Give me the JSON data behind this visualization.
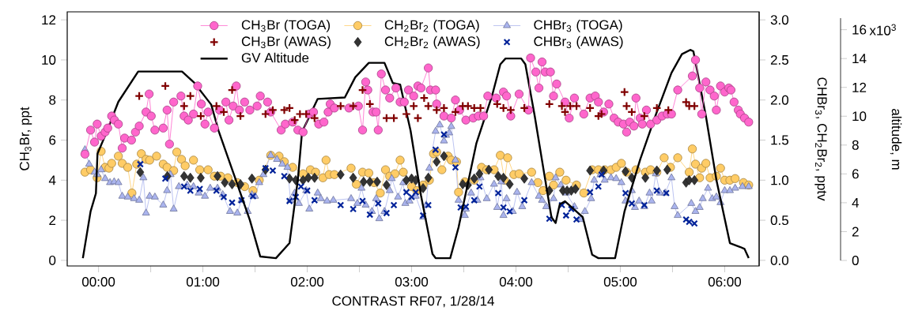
{
  "chart_data": {
    "type": "line",
    "xlabel": "CONTRAST RF07, 1/28/14",
    "ylabel": "CH$_{3}$Br, ppt",
    "y2label": "CHBr$_{3}$, CH$_{2}$Br$_{2}$, pptv",
    "y3label": "altitude, m",
    "xlim": [
      -0.3,
      6.33
    ],
    "ylim": [
      -0.28,
      12.4
    ],
    "y2lim": [
      -0.07,
      3.1
    ],
    "y3lim": [
      0,
      16.8
    ],
    "xticks": [
      {
        "value": 0,
        "label": "00:00"
      },
      {
        "value": 0.5,
        "label": null
      },
      {
        "value": 1,
        "label": "01:00"
      },
      {
        "value": 1.5,
        "label": null
      },
      {
        "value": 2,
        "label": "02:00"
      },
      {
        "value": 2.5,
        "label": null
      },
      {
        "value": 3,
        "label": "03:00"
      },
      {
        "value": 3.5,
        "label": null
      },
      {
        "value": 4,
        "label": "04:00"
      },
      {
        "value": 4.5,
        "label": null
      },
      {
        "value": 5,
        "label": "05:00"
      },
      {
        "value": 5.5,
        "label": null
      },
      {
        "value": 6,
        "label": "06:00"
      }
    ],
    "yticks": [
      0,
      2,
      4,
      6,
      8,
      10,
      12
    ],
    "y2ticks": [
      {
        "value": 0,
        "label": "0.0"
      },
      {
        "value": 0.5,
        "label": "0.5"
      },
      {
        "value": 1,
        "label": "1.0"
      },
      {
        "value": 1.5,
        "label": "1.5"
      },
      {
        "value": 2,
        "label": "2.0"
      },
      {
        "value": 2.5,
        "label": "2.5"
      },
      {
        "value": 3,
        "label": "3.0"
      }
    ],
    "y3ticks": [
      0,
      2,
      4,
      6,
      8,
      10,
      12,
      14,
      16
    ],
    "annotations": [
      "x10$^{3}$"
    ],
    "legend": "top",
    "series": [
      {
        "name": "CH$_{3}$Br (TOGA)",
        "marker": "circle",
        "color": "#ff66cc",
        "x": [
          -0.13,
          -0.076,
          -0.038,
          -0.013,
          0.025,
          0.063,
          0.088,
          0.126,
          0.152,
          0.19,
          0.227,
          0.25,
          0.316,
          0.354,
          0.39,
          0.455,
          0.485,
          0.505,
          0.54,
          0.62,
          0.657,
          0.68,
          0.72,
          0.79,
          0.82,
          0.86,
          0.91,
          0.95,
          0.985,
          1.02,
          1.05,
          1.11,
          1.16,
          1.22,
          1.25,
          1.29,
          1.32,
          1.35,
          1.4,
          1.45,
          1.52,
          1.55,
          1.62,
          1.65,
          1.75,
          1.79,
          1.86,
          1.91,
          1.96,
          2.02,
          2.06,
          2.11,
          2.16,
          2.2,
          2.22,
          2.26,
          2.4,
          2.49,
          2.53,
          2.56,
          2.58,
          2.63,
          2.66,
          2.68,
          2.71,
          2.75,
          2.79,
          2.85,
          2.89,
          2.93,
          2.97,
          3.02,
          3.06,
          3.09,
          3.16,
          3.18,
          3.23,
          3.24,
          3.31,
          3.38,
          3.42,
          3.46,
          3.52,
          3.59,
          3.64,
          3.69,
          3.73,
          3.81,
          3.88,
          3.91,
          3.95,
          4.03,
          4.12,
          4.14,
          4.19,
          4.22,
          4.25,
          4.28,
          4.33,
          4.36,
          4.39,
          4.47,
          4.51,
          4.56,
          4.65,
          4.71,
          4.76,
          4.79,
          4.84,
          4.89,
          4.94,
          4.98,
          5.03,
          5.06,
          5.09,
          5.13,
          5.15,
          5.19,
          5.21,
          5.25,
          5.29,
          5.35,
          5.4,
          5.45,
          5.49,
          5.55,
          5.69,
          5.72,
          5.76,
          5.78,
          5.82,
          5.86,
          5.9,
          5.92,
          5.96,
          6.0,
          6.04,
          6.06,
          6.09,
          6.13,
          6.15,
          6.19,
          6.23
        ],
        "values": [
          5.3,
          6.5,
          5.9,
          6.8,
          6.2,
          6.4,
          6.6,
          7.2,
          7.0,
          6.8,
          5.6,
          6.1,
          6.0,
          6.4,
          6.7,
          7.4,
          8.3,
          7.2,
          6.5,
          6.6,
          7.5,
          5.8,
          7.9,
          8.2,
          7.2,
          7.0,
          7.3,
          8.7,
          7.8,
          6.8,
          7.4,
          6.6,
          7.5,
          7.9,
          7.0,
          7.7,
          8.7,
          7.5,
          7.9,
          7.5,
          7.7,
          8.2,
          7.9,
          7.4,
          6.5,
          6.8,
          6.9,
          6.5,
          6.4,
          7.3,
          7.4,
          6.8,
          6.9,
          7.4,
          7.8,
          7.6,
          7.6,
          7.7,
          6.5,
          8.9,
          8.5,
          7.4,
          7.4,
          6.5,
          9.3,
          8.5,
          8.1,
          8.6,
          7.9,
          7.9,
          8.5,
          8.2,
          8.7,
          8.6,
          9.6,
          8.5,
          8.5,
          7.8,
          7.2,
          7.1,
          8.0,
          7.5,
          7.0,
          7.1,
          7.2,
          7.2,
          8.2,
          8.1,
          8.4,
          8.2,
          7.2,
          8.3,
          7.5,
          10.1,
          9.4,
          8.6,
          9.9,
          9.4,
          9.4,
          8.2,
          8.8,
          7.9,
          7.1,
          8.1,
          7.3,
          8.1,
          8.2,
          7.9,
          7.4,
          7.8,
          7.1,
          6.9,
          6.8,
          6.4,
          6.9,
          6.7,
          8.1,
          7.1,
          6.8,
          7.5,
          6.8,
          7.0,
          7.2,
          7.3,
          7.3,
          8.5,
          9.2,
          10.0,
          8.6,
          7.3,
          8.9,
          8.5,
          8.2,
          7.5,
          8.7,
          8.4,
          8.6,
          8.5,
          7.9,
          7.5,
          7.3,
          7.1,
          6.9
        ]
      },
      {
        "name": "CH$_{2}$Br$_{2}$ (TOGA)",
        "marker": "circle",
        "color": "#ffcc66",
        "axis": "y2",
        "x": [
          -0.13,
          -0.076,
          -0.013,
          0.025,
          0.063,
          0.1,
          0.126,
          0.19,
          0.227,
          0.28,
          0.32,
          0.366,
          0.41,
          0.455,
          0.49,
          0.556,
          0.62,
          0.657,
          0.72,
          0.75,
          0.795,
          0.83,
          0.91,
          0.97,
          1.05,
          1.11,
          1.17,
          1.24,
          1.33,
          1.4,
          1.48,
          1.54,
          1.65,
          1.73,
          1.78,
          1.86,
          1.96,
          2.03,
          2.08,
          2.15,
          2.18,
          2.21,
          2.26,
          2.42,
          2.47,
          2.53,
          2.59,
          2.64,
          2.7,
          2.75,
          2.79,
          2.84,
          2.89,
          2.92,
          3.0,
          3.05,
          3.11,
          3.17,
          3.21,
          3.24,
          3.29,
          3.35,
          3.38,
          3.43,
          3.45,
          3.51,
          3.6,
          3.67,
          3.72,
          3.79,
          3.85,
          3.89,
          3.92,
          3.98,
          4.03,
          4.15,
          4.21,
          4.26,
          4.32,
          4.36,
          4.42,
          4.48,
          4.58,
          4.65,
          4.73,
          4.79,
          4.85,
          4.91,
          4.96,
          5.01,
          5.06,
          5.15,
          5.24,
          5.29,
          5.35,
          5.42,
          5.48,
          5.55,
          5.66,
          5.69,
          5.72,
          5.76,
          5.78,
          5.82,
          5.86,
          5.92,
          5.96,
          6.0,
          6.05,
          6.1,
          6.18,
          6.23
        ],
        "values": [
          1.1,
          1.13,
          1.03,
          1.36,
          1.16,
          1.15,
          1.21,
          1.3,
          1.21,
          1.16,
          0.84,
          1.2,
          1.33,
          1.26,
          1.25,
          1.3,
          1.2,
          1.16,
          1.12,
          1.35,
          1.26,
          1.18,
          1.25,
          1.13,
          1.13,
          1.05,
          1.05,
          1.03,
          0.97,
          0.92,
          0.87,
          1.0,
          1.31,
          1.3,
          1.23,
          1.16,
          1.08,
          1.13,
          1.1,
          1.03,
          1.25,
          1.07,
          1.07,
          1.15,
          0.95,
          1.1,
          1.09,
          0.97,
          0.84,
          1.13,
          1.05,
          1.08,
          1.25,
          1.1,
          0.92,
          0.87,
          0.94,
          1.0,
          1.33,
          1.35,
          1.13,
          1.3,
          1.25,
          1.23,
          0.85,
          0.98,
          1.0,
          1.16,
          1.13,
          1.13,
          1.31,
          1.0,
          1.28,
          1.07,
          1.08,
          1.1,
          0.97,
          0.87,
          1.05,
          0.94,
          1.1,
          1.0,
          0.94,
          0.84,
          1.13,
          1.13,
          1.13,
          1.13,
          1.16,
          1.21,
          1.1,
          1.13,
          1.1,
          1.13,
          1.1,
          1.28,
          1.16,
          1.28,
          1.1,
          1.39,
          1.2,
          1.03,
          1.15,
          1.21,
          1.03,
          1.05,
          1.15,
          1.0,
          1.0,
          1.02,
          0.97,
          0.94
        ]
      },
      {
        "name": "CHBr$_{3}$ (TOGA)",
        "marker": "triangle",
        "color": "#aab4ee",
        "axis": "y2",
        "x": [
          -0.13,
          -0.09,
          -0.038,
          -0.013,
          0.025,
          0.063,
          0.11,
          0.15,
          0.19,
          0.227,
          0.28,
          0.34,
          0.39,
          0.43,
          0.455,
          0.49,
          0.54,
          0.62,
          0.657,
          0.69,
          0.72,
          0.77,
          0.85,
          0.91,
          0.96,
          1.02,
          1.07,
          1.14,
          1.19,
          1.26,
          1.33,
          1.37,
          1.43,
          1.47,
          1.5,
          1.54,
          1.58,
          1.65,
          1.71,
          1.76,
          1.81,
          1.84,
          1.88,
          1.92,
          1.99,
          2.02,
          2.1,
          2.13,
          2.19,
          2.25,
          2.42,
          2.48,
          2.52,
          2.56,
          2.62,
          2.66,
          2.69,
          2.74,
          2.79,
          2.81,
          2.87,
          2.92,
          2.94,
          2.98,
          3.04,
          3.11,
          3.14,
          3.17,
          3.23,
          3.27,
          3.31,
          3.33,
          3.36,
          3.38,
          3.42,
          3.45,
          3.51,
          3.52,
          3.57,
          3.63,
          3.66,
          3.72,
          3.79,
          3.82,
          3.86,
          3.88,
          3.91,
          3.97,
          4.01,
          4.06,
          4.15,
          4.22,
          4.25,
          4.29,
          4.36,
          4.38,
          4.43,
          4.48,
          4.56,
          4.62,
          4.66,
          4.72,
          4.75,
          4.81,
          4.85,
          4.91,
          4.96,
          5.01,
          5.05,
          5.11,
          5.14,
          5.18,
          5.23,
          5.28,
          5.3,
          5.34,
          5.38,
          5.43,
          5.49,
          5.52,
          5.55,
          5.68,
          5.72,
          5.76,
          5.79,
          5.84,
          5.88,
          5.92,
          5.96,
          6.0,
          6.05,
          6.1,
          6.17,
          6.23
        ],
        "values": [
          1.38,
          1.2,
          1.1,
          1.07,
          1.13,
          1.02,
          0.97,
          0.98,
          0.97,
          0.8,
          0.79,
          0.77,
          0.75,
          1.03,
          0.59,
          0.8,
          0.79,
          0.69,
          0.87,
          1.07,
          0.64,
          0.92,
          0.94,
          0.92,
          0.84,
          0.8,
          0.9,
          0.9,
          0.82,
          0.61,
          0.59,
          0.75,
          0.61,
          0.82,
          0.8,
          0.97,
          1.07,
          1.31,
          1.26,
          1.2,
          1.16,
          0.75,
          0.84,
          0.71,
          0.87,
          0.64,
          0.84,
          0.77,
          0.74,
          0.75,
          0.77,
          0.71,
          0.9,
          0.69,
          0.61,
          0.77,
          0.52,
          0.61,
          0.87,
          1.02,
          0.79,
          0.97,
          0.71,
          0.74,
          0.8,
          0.54,
          0.69,
          1.15,
          1.61,
          1.69,
          1.49,
          1.56,
          1.59,
          1.67,
          1.25,
          0.75,
          0.56,
          0.64,
          0.84,
          0.75,
          1.03,
          0.77,
          0.95,
          0.66,
          0.98,
          0.56,
          0.77,
          0.61,
          0.85,
          0.67,
          0.97,
          0.8,
          0.75,
          0.67,
          0.77,
          1.03,
          0.94,
          0.84,
          0.67,
          0.51,
          0.61,
          0.77,
          1.0,
          1.07,
          1.0,
          1.03,
          1.02,
          0.97,
          0.74,
          0.87,
          0.66,
          0.74,
          0.67,
          0.84,
          0.74,
          1.08,
          0.84,
          0.84,
          1.03,
          0.67,
          0.56,
          0.71,
          0.61,
          0.66,
          0.77,
          0.9,
          0.77,
          0.79,
          0.72,
          0.87,
          0.87,
          0.9,
          0.92,
          0.92
        ]
      },
      {
        "name": "CH$_{3}$Br (AWAS)",
        "type": "scatter",
        "marker": "plus",
        "color": "#800000",
        "x": [
          0.39,
          0.64,
          0.82,
          0.88,
          0.98,
          1.13,
          1.2,
          1.28,
          1.36,
          1.6,
          1.67,
          1.78,
          1.83,
          1.88,
          1.93,
          1.99,
          2.07,
          2.32,
          2.44,
          2.53,
          2.6,
          2.76,
          2.83,
          2.95,
          3.02,
          3.06,
          3.12,
          3.16,
          3.24,
          3.31,
          3.42,
          3.49,
          3.54,
          3.6,
          3.66,
          3.82,
          3.88,
          3.95,
          4.08,
          4.32,
          4.44,
          4.47,
          4.52,
          4.58,
          4.71,
          4.79,
          4.82,
          5.04,
          5.06,
          5.11,
          5.23,
          5.35,
          5.46,
          5.63,
          5.66,
          5.71
        ],
        "values": [
          8.2,
          8.7,
          7.7,
          8.2,
          7.2,
          7.7,
          7.4,
          8.5,
          7.2,
          7.3,
          7.5,
          7.5,
          7.6,
          7.0,
          7.3,
          7.3,
          7.1,
          7.7,
          7.7,
          8.5,
          7.8,
          7.1,
          7.1,
          7.3,
          7.7,
          7.1,
          8.1,
          7.7,
          7.5,
          7.6,
          7.4,
          7.7,
          7.7,
          7.6,
          7.6,
          7.8,
          7.6,
          7.5,
          7.6,
          7.8,
          7.7,
          7.4,
          7.7,
          7.7,
          7.6,
          7.2,
          7.3,
          8.4,
          7.7,
          7.4,
          7.2,
          7.6,
          7.5,
          7.9,
          7.7,
          7.7
        ]
      },
      {
        "name": "CH$_{2}$Br$_{2}$ (AWAS)",
        "type": "scatter",
        "marker": "diamond",
        "color": "#333333",
        "axis": "y2",
        "x": [
          0.4,
          0.66,
          0.82,
          0.88,
          0.98,
          1.14,
          1.21,
          1.28,
          1.36,
          1.47,
          1.6,
          1.83,
          1.89,
          1.96,
          2.01,
          2.07,
          2.32,
          2.44,
          2.54,
          2.6,
          2.67,
          2.76,
          2.95,
          3.0,
          3.04,
          3.11,
          3.16,
          3.24,
          3.31,
          3.49,
          3.54,
          3.6,
          3.65,
          3.74,
          3.83,
          3.88,
          3.94,
          4.08,
          4.32,
          4.45,
          4.49,
          4.53,
          4.57,
          4.71,
          4.84,
          5.05,
          5.11,
          5.24,
          5.35,
          5.45,
          5.63,
          5.66,
          5.71
        ],
        "values": [
          1.1,
          1.05,
          1.05,
          1.03,
          1.03,
          1.05,
          0.97,
          0.95,
          0.95,
          1.02,
          1.13,
          1.02,
          1.0,
          1.0,
          1.03,
          1.03,
          1.07,
          1.03,
          0.98,
          0.98,
          0.98,
          0.94,
          1.0,
          1.02,
          1.0,
          0.9,
          1.03,
          1.23,
          1.3,
          0.95,
          0.94,
          1.02,
          1.08,
          1.13,
          1.05,
          1.03,
          0.95,
          1.02,
          0.87,
          0.87,
          0.87,
          0.87,
          0.89,
          1.12,
          1.12,
          1.11,
          1.03,
          1.03,
          1.12,
          1.13,
          0.97,
          1.0,
          1.0
        ]
      },
      {
        "name": "CHBr$_{3}$ (AWAS)",
        "type": "scatter",
        "marker": "cross",
        "color": "#002299",
        "axis": "y2",
        "x": [
          0.4,
          0.64,
          0.82,
          0.88,
          0.97,
          1.13,
          1.2,
          1.28,
          1.37,
          1.48,
          1.6,
          1.67,
          1.78,
          1.83,
          1.89,
          1.94,
          2.0,
          2.07,
          2.32,
          2.44,
          2.53,
          2.6,
          2.68,
          2.76,
          2.83,
          2.95,
          3.0,
          3.04,
          3.11,
          3.16,
          3.23,
          3.31,
          3.42,
          3.47,
          3.52,
          3.6,
          3.65,
          3.83,
          3.88,
          3.94,
          4.08,
          4.32,
          4.44,
          4.48,
          4.53,
          4.58,
          4.71,
          4.79,
          4.82,
          5.05,
          5.11,
          5.23,
          5.35,
          5.44,
          5.63,
          5.66,
          5.71
        ],
        "values": [
          1.2,
          1.02,
          0.92,
          0.87,
          0.89,
          0.87,
          0.79,
          0.72,
          0.75,
          0.8,
          1.15,
          1.12,
          1.05,
          0.74,
          0.79,
          0.92,
          0.87,
          0.75,
          0.69,
          0.64,
          0.74,
          0.57,
          0.71,
          0.59,
          0.69,
          0.85,
          0.79,
          0.85,
          0.56,
          0.69,
          1.38,
          1.57,
          1.16,
          0.66,
          0.67,
          0.75,
          0.92,
          0.84,
          0.66,
          0.61,
          0.75,
          0.52,
          0.69,
          0.56,
          0.64,
          0.51,
          0.85,
          0.92,
          1.07,
          0.84,
          0.71,
          0.69,
          0.87,
          0.84,
          0.51,
          0.48,
          0.46
        ]
      },
      {
        "name": "GV Altitude",
        "marker": "none",
        "color": "#000000",
        "axis": "y3",
        "x": [
          -0.15,
          -0.076,
          -0.025,
          -0.01,
          0.06,
          0.19,
          0.38,
          0.8,
          0.92,
          1.08,
          1.15,
          1.3,
          1.45,
          1.55,
          1.7,
          1.83,
          1.91,
          1.95,
          2.1,
          2.36,
          2.46,
          2.59,
          2.74,
          2.82,
          2.89,
          2.99,
          3.09,
          3.2,
          3.23,
          3.37,
          3.45,
          3.62,
          3.77,
          3.85,
          3.9,
          4.05,
          4.09,
          4.18,
          4.28,
          4.34,
          4.38,
          4.42,
          4.47,
          4.64,
          4.73,
          4.79,
          4.95,
          5.04,
          5.19,
          5.34,
          5.49,
          5.59,
          5.67,
          5.7,
          5.82,
          5.92,
          6.05,
          6.15,
          6.19,
          6.23
        ],
        "values": [
          0.16,
          3.4,
          4.65,
          7.4,
          8.6,
          11.0,
          13.1,
          13.1,
          12.3,
          10.8,
          9.0,
          5.9,
          2.8,
          0.27,
          0.16,
          1.2,
          5.6,
          8.9,
          11.2,
          11.3,
          12.7,
          13.7,
          13.7,
          12.3,
          12.2,
          9.0,
          4.5,
          0.45,
          0.16,
          0.16,
          2.3,
          8.1,
          11.4,
          13.6,
          14.0,
          14.0,
          13.6,
          10.0,
          5.6,
          3.0,
          2.6,
          3.9,
          4.1,
          3.0,
          0.4,
          0.16,
          0.16,
          3.4,
          7.0,
          10.1,
          13.0,
          14.3,
          14.6,
          14.5,
          10.0,
          5.6,
          1.2,
          0.93,
          0.8,
          0.16
        ]
      }
    ]
  }
}
